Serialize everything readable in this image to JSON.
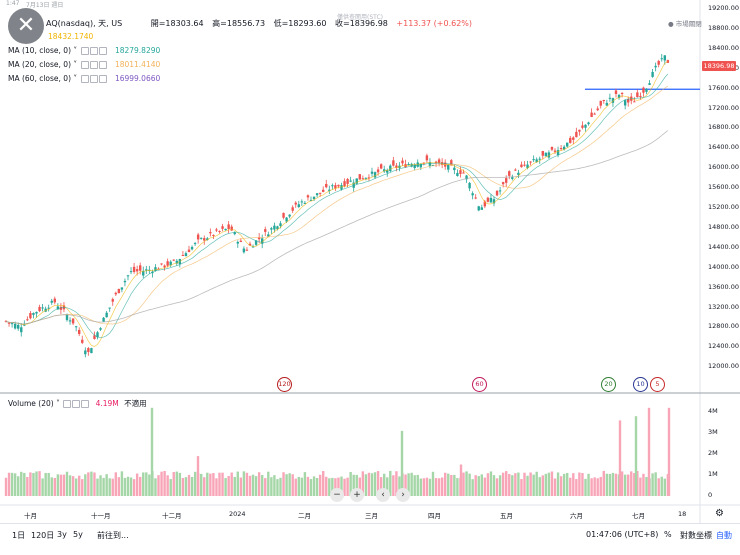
{
  "statusbar": {
    "time": "1:47",
    "date": "7月13日 週日"
  },
  "watermark": "僅供查閱用(STC)",
  "header": {
    "symbol_label": "AQ(nasdaq), 天, US",
    "open_label": "開=18303.64",
    "high_label": "高=18556.73",
    "low_label": "低=18293.60",
    "close_label": "收=18396.98",
    "change_label": "+113.37 (+0.62%)",
    "market_status": "市場關閉"
  },
  "legend": [
    {
      "label": "MA (5, close, 0)",
      "value": "18432.1740",
      "color": "#f0b400"
    },
    {
      "label": "MA (10, close, 0)",
      "value": "18279.8290",
      "color": "#26a69a"
    },
    {
      "label": "MA (20, close, 0)",
      "value": "18011.4140",
      "color": "#f2b25a"
    },
    {
      "label": "MA (60, close, 0)",
      "value": "16999.0660",
      "color": "#7e57c2"
    }
  ],
  "price_axis": [
    "19200.00",
    "18800.00",
    "18400.00",
    "18000.00",
    "17600.00",
    "17200.00",
    "16800.00",
    "16400.00",
    "16000.00",
    "15600.00",
    "15200.00",
    "14800.00",
    "14400.00",
    "14000.00",
    "13600.00",
    "13200.00",
    "12800.00",
    "12400.00",
    "12000.00"
  ],
  "last_price": "18396.98",
  "hline_price": 17900,
  "volume": {
    "label": "Volume (20)",
    "value": "4.19M",
    "tag": "不適用",
    "axis": [
      "4M",
      "3M",
      "2M",
      "1M",
      "0"
    ]
  },
  "time_axis": [
    "十月",
    "十一月",
    "十二月",
    "2024",
    "二月",
    "三月",
    "四月",
    "五月",
    "六月",
    "七月",
    "18"
  ],
  "markers": [
    {
      "label": "120",
      "color": "#b71c1c"
    },
    {
      "label": "60",
      "color": "#c2185b"
    },
    {
      "label": "20",
      "color": "#2e7d32"
    },
    {
      "label": "10",
      "color": "#283593"
    },
    {
      "label": "5",
      "color": "#c62828"
    }
  ],
  "nav_buttons": [
    "−",
    "+",
    "‹",
    "›"
  ],
  "bottombar": {
    "ranges": [
      "1日",
      "120日",
      "3y",
      "5y"
    ],
    "goto_label": "前往到...",
    "clock": "01:47:06 (UTC+8)",
    "percent": "%",
    "log_label": "對數坐標",
    "auto_label": "自動"
  },
  "colors": {
    "up": "#ef5350",
    "down": "#26a69a",
    "up_candle": "#26a69a",
    "down_candle": "#ef5350"
  }
}
